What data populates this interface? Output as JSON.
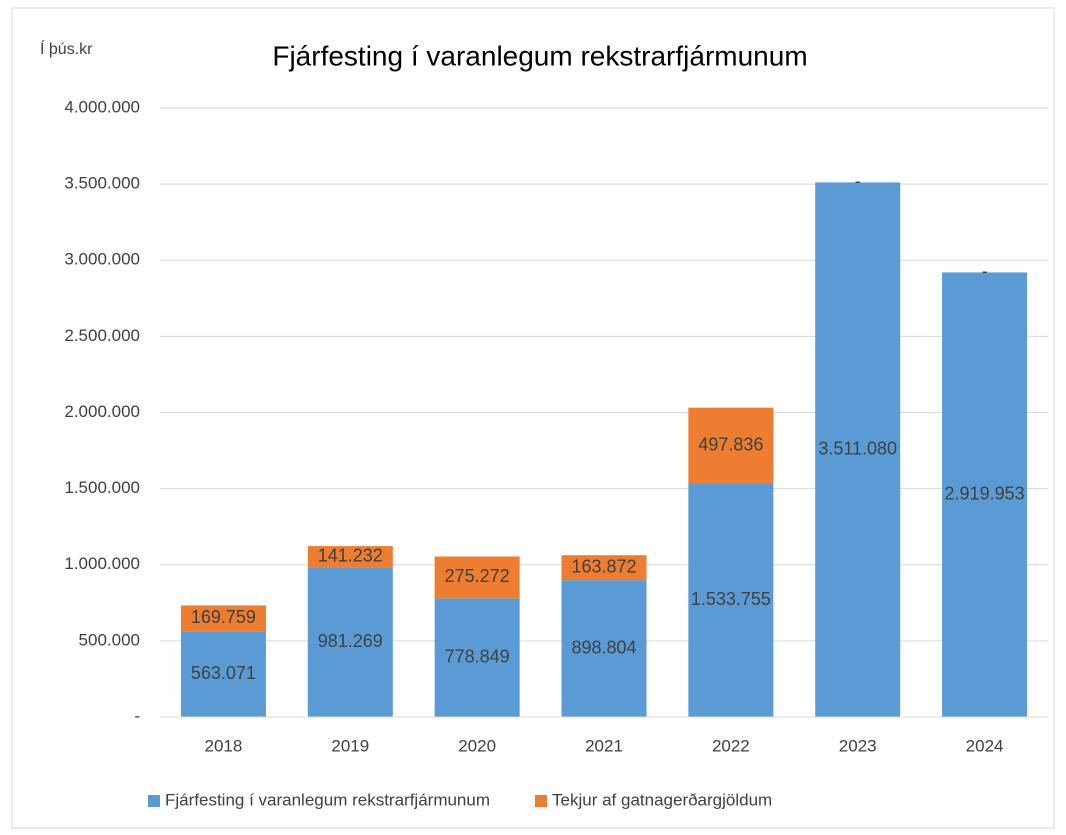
{
  "chart_data": {
    "type": "stacked-bar",
    "title": "Fjárfesting í varanlegum rekstrarfjármunum",
    "y_axis_label": "Í þús.kr",
    "categories": [
      "2018",
      "2019",
      "2020",
      "2021",
      "2022",
      "2023",
      "2024"
    ],
    "series": [
      {
        "name": "Fjárfesting í varanlegum rekstrarfjármunum",
        "color": "#5b9bd5",
        "values": [
          563071,
          981269,
          778849,
          898804,
          1533755,
          3511080,
          2919953
        ],
        "value_labels": [
          "563.071",
          "981.269",
          "778.849",
          "898.804",
          "1.533.755",
          "3.511.080",
          "2.919.953"
        ]
      },
      {
        "name": "Tekjur af gatnagerðargjöldum",
        "color": "#ed7d31",
        "values": [
          169759,
          141232,
          275272,
          163872,
          497836,
          0,
          0
        ],
        "value_labels": [
          "169.759",
          "141.232",
          "275.272",
          "163.872",
          "497.836",
          "-",
          "-"
        ]
      }
    ],
    "ylim": [
      0,
      4000000
    ],
    "yticks": [
      {
        "value": 0,
        "label": "-"
      },
      {
        "value": 500000,
        "label": "500.000"
      },
      {
        "value": 1000000,
        "label": "1.000.000"
      },
      {
        "value": 1500000,
        "label": "1.500.000"
      },
      {
        "value": 2000000,
        "label": "2.000.000"
      },
      {
        "value": 2500000,
        "label": "2.500.000"
      },
      {
        "value": 3000000,
        "label": "3.000.000"
      },
      {
        "value": 3500000,
        "label": "3.500.000"
      },
      {
        "value": 4000000,
        "label": "4.000.000"
      }
    ],
    "grid": true,
    "legend": "bottom"
  }
}
